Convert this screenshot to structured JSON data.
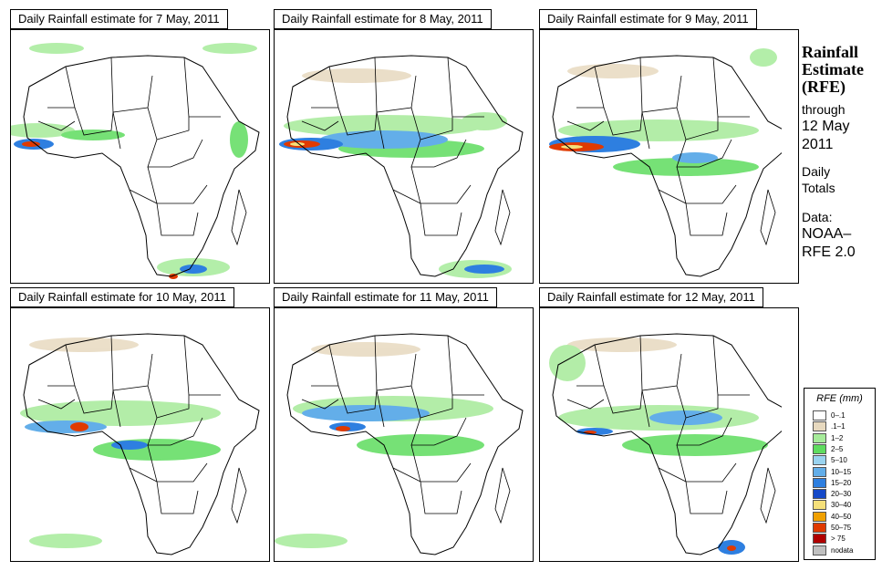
{
  "panels": [
    {
      "title": "Daily Rainfall estimate for  7 May, 2011"
    },
    {
      "title": "Daily Rainfall estimate for  8 May, 2011"
    },
    {
      "title": "Daily Rainfall estimate for  9 May, 2011"
    },
    {
      "title": "Daily Rainfall estimate for  10 May, 2011"
    },
    {
      "title": "Daily Rainfall estimate for  11 May, 2011"
    },
    {
      "title": "Daily Rainfall estimate for  12 May, 2011"
    }
  ],
  "sidebar": {
    "line1": "Rainfall",
    "line2": "Estimate",
    "line3": "(RFE)",
    "through": "through",
    "date1": "12 May",
    "date2": "2011",
    "daily": "Daily",
    "totals": "Totals",
    "data_label": "Data:",
    "source1": "NOAA–",
    "source2": "RFE 2.0"
  },
  "legend": {
    "title": "RFE (mm)",
    "items": [
      {
        "label": "0–.1",
        "color": "#ffffff"
      },
      {
        "label": ".1–1",
        "color": "#e7d9bf"
      },
      {
        "label": "1–2",
        "color": "#a6eb9a"
      },
      {
        "label": "2–5",
        "color": "#5fdc5f"
      },
      {
        "label": "5–10",
        "color": "#9ad3ef"
      },
      {
        "label": "10–15",
        "color": "#63aee9"
      },
      {
        "label": "15–20",
        "color": "#2e7fe0"
      },
      {
        "label": "20–30",
        "color": "#1549c8"
      },
      {
        "label": "30–40",
        "color": "#f5e07a"
      },
      {
        "label": "40–50",
        "color": "#f0a000"
      },
      {
        "label": "50–75",
        "color": "#e03a00"
      },
      {
        "label": "> 75",
        "color": "#b00000"
      },
      {
        "label": "nodata",
        "color": "#c0c0c0"
      }
    ]
  }
}
